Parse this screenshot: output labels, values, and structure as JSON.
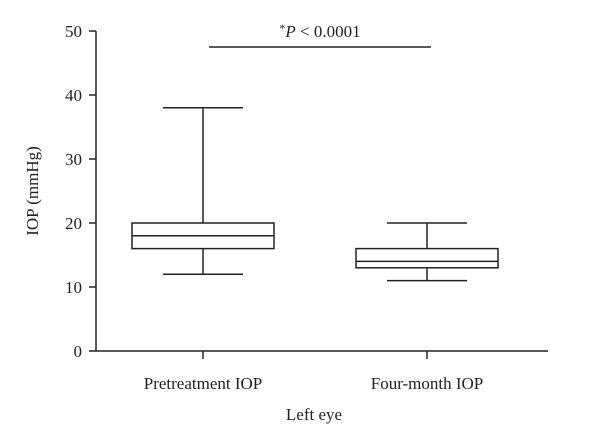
{
  "chart_data": {
    "type": "box",
    "categories": [
      "Pretreatment IOP",
      "Four-month IOP"
    ],
    "boxes": [
      {
        "category": "Pretreatment IOP",
        "min": 12,
        "q1": 16,
        "median": 18,
        "q3": 20,
        "max": 38
      },
      {
        "category": "Four-month IOP",
        "min": 11,
        "q1": 13,
        "median": 14,
        "q3": 16,
        "max": 20
      }
    ],
    "xlabel": "Left eye",
    "ylabel": "IOP (mmHg)",
    "ylim": [
      0,
      50
    ],
    "yticks": [
      0,
      10,
      20,
      30,
      40,
      50
    ],
    "grid": false,
    "annotation": {
      "star": "*",
      "p_symbol": "P",
      "text": " < 0.0001"
    }
  }
}
